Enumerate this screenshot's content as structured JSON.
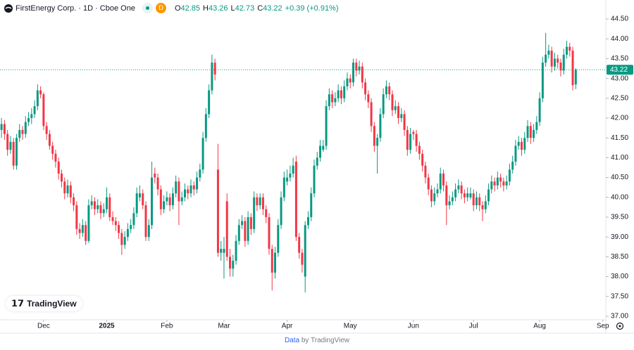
{
  "chart_data": {
    "type": "candlestick",
    "title": "FirstEnergy Corp. · 1D · Cboe One",
    "interval_badge": "D",
    "ohlc_labels": [
      "O",
      "H",
      "L",
      "C"
    ],
    "change": "+0.39 (+0.91%)",
    "up_color": "#089981",
    "down_color": "#f23645",
    "candles": [
      [
        41.7,
        42.0,
        41.5,
        41.85
      ],
      [
        41.85,
        41.95,
        41.45,
        41.6
      ],
      [
        41.6,
        41.7,
        41.05,
        41.2
      ],
      [
        41.2,
        41.55,
        41.1,
        41.4
      ],
      [
        41.4,
        41.5,
        40.7,
        40.8
      ],
      [
        40.8,
        41.6,
        40.7,
        41.5
      ],
      [
        41.5,
        41.85,
        41.4,
        41.7
      ],
      [
        41.7,
        41.8,
        41.45,
        41.6
      ],
      [
        41.6,
        42.05,
        41.5,
        41.9
      ],
      [
        41.9,
        42.15,
        41.8,
        42.0
      ],
      [
        42.0,
        42.25,
        41.85,
        42.1
      ],
      [
        42.1,
        42.45,
        42.0,
        42.3
      ],
      [
        42.3,
        42.85,
        42.2,
        42.7
      ],
      [
        42.7,
        42.8,
        42.5,
        42.6
      ],
      [
        42.6,
        42.65,
        41.7,
        41.8
      ],
      [
        41.8,
        41.9,
        41.45,
        41.6
      ],
      [
        41.6,
        41.7,
        41.2,
        41.3
      ],
      [
        41.3,
        41.4,
        40.95,
        41.1
      ],
      [
        41.1,
        41.2,
        40.75,
        40.9
      ],
      [
        40.9,
        41.0,
        40.45,
        40.6
      ],
      [
        40.6,
        40.7,
        40.25,
        40.4
      ],
      [
        40.4,
        40.5,
        39.95,
        40.1
      ],
      [
        40.1,
        40.45,
        40.0,
        40.3
      ],
      [
        40.3,
        40.4,
        39.85,
        40.0
      ],
      [
        40.0,
        40.1,
        39.65,
        39.8
      ],
      [
        39.8,
        39.9,
        39.05,
        39.2
      ],
      [
        39.2,
        39.35,
        38.95,
        39.1
      ],
      [
        39.1,
        39.45,
        39.0,
        39.3
      ],
      [
        39.3,
        39.4,
        38.8,
        38.9
      ],
      [
        38.9,
        39.95,
        38.85,
        39.8
      ],
      [
        39.8,
        40.05,
        39.7,
        39.9
      ],
      [
        39.9,
        40.0,
        39.55,
        39.7
      ],
      [
        39.7,
        39.95,
        39.6,
        39.8
      ],
      [
        39.8,
        39.9,
        39.45,
        39.6
      ],
      [
        39.6,
        39.85,
        39.5,
        39.7
      ],
      [
        39.7,
        40.25,
        39.6,
        40.0
      ],
      [
        40.0,
        40.1,
        39.4,
        39.5
      ],
      [
        39.5,
        39.65,
        39.3,
        39.4
      ],
      [
        39.4,
        39.5,
        39.15,
        39.3
      ],
      [
        39.3,
        39.4,
        38.95,
        39.1
      ],
      [
        39.1,
        39.2,
        38.55,
        38.8
      ],
      [
        38.8,
        39.15,
        38.7,
        39.0
      ],
      [
        39.0,
        39.35,
        38.9,
        39.2
      ],
      [
        39.2,
        39.45,
        39.1,
        39.3
      ],
      [
        39.3,
        39.75,
        39.2,
        39.6
      ],
      [
        39.6,
        40.25,
        39.5,
        40.1
      ],
      [
        40.0,
        40.3,
        39.9,
        40.1
      ],
      [
        40.1,
        40.2,
        39.7,
        39.8
      ],
      [
        39.8,
        39.9,
        38.9,
        39.0
      ],
      [
        39.0,
        39.45,
        38.9,
        39.3
      ],
      [
        39.3,
        40.9,
        39.2,
        40.5
      ],
      [
        40.6,
        40.75,
        40.35,
        40.5
      ],
      [
        40.5,
        40.6,
        40.05,
        40.2
      ],
      [
        40.2,
        40.3,
        39.55,
        39.7
      ],
      [
        39.7,
        40.05,
        39.6,
        39.9
      ],
      [
        39.9,
        40.15,
        39.8,
        40.0
      ],
      [
        40.0,
        40.1,
        39.65,
        39.8
      ],
      [
        39.8,
        40.25,
        39.7,
        40.1
      ],
      [
        40.1,
        40.55,
        40.0,
        40.4
      ],
      [
        40.4,
        40.5,
        39.3,
        39.9
      ],
      [
        39.9,
        40.15,
        39.8,
        40.0
      ],
      [
        40.0,
        40.35,
        39.9,
        40.2
      ],
      [
        40.2,
        40.3,
        39.95,
        40.1
      ],
      [
        40.1,
        40.45,
        40.0,
        40.3
      ],
      [
        40.3,
        40.4,
        40.05,
        40.2
      ],
      [
        40.2,
        40.65,
        40.1,
        40.5
      ],
      [
        40.5,
        40.85,
        40.4,
        40.7
      ],
      [
        40.7,
        41.65,
        40.6,
        41.5
      ],
      [
        41.5,
        42.25,
        41.4,
        42.1
      ],
      [
        42.1,
        42.85,
        42.0,
        42.7
      ],
      [
        42.7,
        43.6,
        42.6,
        43.4
      ],
      [
        43.4,
        43.5,
        42.95,
        43.1
      ],
      [
        40.7,
        41.35,
        38.5,
        38.6
      ],
      [
        38.6,
        38.9,
        38.4,
        38.7
      ],
      [
        38.6,
        39.0,
        37.95,
        38.7
      ],
      [
        39.9,
        40.1,
        38.4,
        38.5
      ],
      [
        38.5,
        38.7,
        38.0,
        38.2
      ],
      [
        38.2,
        38.55,
        38.0,
        38.4
      ],
      [
        38.4,
        39.05,
        38.3,
        38.9
      ],
      [
        38.9,
        39.45,
        38.8,
        39.3
      ],
      [
        39.3,
        39.55,
        39.2,
        39.4
      ],
      [
        39.4,
        39.5,
        38.75,
        38.9
      ],
      [
        38.9,
        39.65,
        38.8,
        39.5
      ],
      [
        39.5,
        39.6,
        39.05,
        39.2
      ],
      [
        39.2,
        40.15,
        39.1,
        40.0
      ],
      [
        40.0,
        40.1,
        39.65,
        39.8
      ],
      [
        39.8,
        40.1,
        39.7,
        40.0
      ],
      [
        40.0,
        40.1,
        39.55,
        39.7
      ],
      [
        39.7,
        39.8,
        39.35,
        39.5
      ],
      [
        39.5,
        39.6,
        38.55,
        38.7
      ],
      [
        38.7,
        38.8,
        37.65,
        38.1
      ],
      [
        38.1,
        38.75,
        37.95,
        38.6
      ],
      [
        38.6,
        39.45,
        38.5,
        39.3
      ],
      [
        39.3,
        40.15,
        39.2,
        40.0
      ],
      [
        40.0,
        40.65,
        39.9,
        40.5
      ],
      [
        40.4,
        40.7,
        40.3,
        40.5
      ],
      [
        40.5,
        40.8,
        40.4,
        40.6
      ],
      [
        40.6,
        41.0,
        40.5,
        40.8
      ],
      [
        40.9,
        41.05,
        38.9,
        39.0
      ],
      [
        39.0,
        39.1,
        38.45,
        38.6
      ],
      [
        38.6,
        38.7,
        38.1,
        38.3
      ],
      [
        38.0,
        39.4,
        37.6,
        39.3
      ],
      [
        39.3,
        39.65,
        39.2,
        39.5
      ],
      [
        39.5,
        40.25,
        39.4,
        40.1
      ],
      [
        40.1,
        40.95,
        40.0,
        40.8
      ],
      [
        40.8,
        41.15,
        40.7,
        41.0
      ],
      [
        41.0,
        41.45,
        40.9,
        41.3
      ],
      [
        41.2,
        41.45,
        41.15,
        41.3
      ],
      [
        41.3,
        42.45,
        41.2,
        42.3
      ],
      [
        42.3,
        42.75,
        42.2,
        42.6
      ],
      [
        42.6,
        42.7,
        42.25,
        42.4
      ],
      [
        42.4,
        42.65,
        42.3,
        42.5
      ],
      [
        42.5,
        42.85,
        42.4,
        42.7
      ],
      [
        42.7,
        42.8,
        42.35,
        42.5
      ],
      [
        42.5,
        42.95,
        42.4,
        42.8
      ],
      [
        42.8,
        43.15,
        42.7,
        43.0
      ],
      [
        43.0,
        43.1,
        42.75,
        42.9
      ],
      [
        42.9,
        43.5,
        42.8,
        43.4
      ],
      [
        43.4,
        43.5,
        43.05,
        43.2
      ],
      [
        43.2,
        43.45,
        43.1,
        43.3
      ],
      [
        43.3,
        43.4,
        42.75,
        42.9
      ],
      [
        42.9,
        43.0,
        42.45,
        42.6
      ],
      [
        42.6,
        42.7,
        42.25,
        42.4
      ],
      [
        42.4,
        42.5,
        41.65,
        41.8
      ],
      [
        41.8,
        41.9,
        41.15,
        41.3
      ],
      [
        41.3,
        41.6,
        40.6,
        41.5
      ],
      [
        41.5,
        42.25,
        41.4,
        42.1
      ],
      [
        42.1,
        42.75,
        42.0,
        42.6
      ],
      [
        42.6,
        42.95,
        42.5,
        42.8
      ],
      [
        42.8,
        42.9,
        42.45,
        42.6
      ],
      [
        42.6,
        42.7,
        42.05,
        42.2
      ],
      [
        42.2,
        42.45,
        42.1,
        42.3
      ],
      [
        42.3,
        42.4,
        41.85,
        42.0
      ],
      [
        42.0,
        42.25,
        41.9,
        42.1
      ],
      [
        42.1,
        42.2,
        41.55,
        41.7
      ],
      [
        41.7,
        41.8,
        41.05,
        41.2
      ],
      [
        41.2,
        41.75,
        41.1,
        41.6
      ],
      [
        41.65,
        41.7,
        41.45,
        41.6
      ],
      [
        41.6,
        41.7,
        41.15,
        41.3
      ],
      [
        41.3,
        41.4,
        40.95,
        41.1
      ],
      [
        41.1,
        41.2,
        40.65,
        40.8
      ],
      [
        40.8,
        40.9,
        40.35,
        40.5
      ],
      [
        40.5,
        40.6,
        40.05,
        40.2
      ],
      [
        40.2,
        40.3,
        39.75,
        39.9
      ],
      [
        39.9,
        40.25,
        39.8,
        40.1
      ],
      [
        40.1,
        40.35,
        40.0,
        40.2
      ],
      [
        40.2,
        40.75,
        40.1,
        40.6
      ],
      [
        40.6,
        40.7,
        40.15,
        40.3
      ],
      [
        40.3,
        40.4,
        39.3,
        39.8
      ],
      [
        39.8,
        40.05,
        39.7,
        39.9
      ],
      [
        39.9,
        40.15,
        39.8,
        40.0
      ],
      [
        40.0,
        40.35,
        39.9,
        40.2
      ],
      [
        40.2,
        40.45,
        40.1,
        40.3
      ],
      [
        40.3,
        40.4,
        39.95,
        40.1
      ],
      [
        40.1,
        40.2,
        39.85,
        40.0
      ],
      [
        40.0,
        40.25,
        39.9,
        40.1
      ],
      [
        40.0,
        40.25,
        39.95,
        40.1
      ],
      [
        40.1,
        40.2,
        39.65,
        39.8
      ],
      [
        39.8,
        40.15,
        39.7,
        40.0
      ],
      [
        40.0,
        40.1,
        39.65,
        39.8
      ],
      [
        39.8,
        39.9,
        39.4,
        39.7
      ],
      [
        39.7,
        40.05,
        39.6,
        39.9
      ],
      [
        39.9,
        40.35,
        39.8,
        40.2
      ],
      [
        40.2,
        40.55,
        40.1,
        40.4
      ],
      [
        40.4,
        40.5,
        40.15,
        40.3
      ],
      [
        40.3,
        40.65,
        40.2,
        40.5
      ],
      [
        40.5,
        40.6,
        40.25,
        40.4
      ],
      [
        40.4,
        40.5,
        40.15,
        40.3
      ],
      [
        40.3,
        40.55,
        40.2,
        40.4
      ],
      [
        40.4,
        40.85,
        40.3,
        40.7
      ],
      [
        40.7,
        41.05,
        40.6,
        40.9
      ],
      [
        40.9,
        41.45,
        40.8,
        41.3
      ],
      [
        41.3,
        41.55,
        41.2,
        41.4
      ],
      [
        41.4,
        41.5,
        41.05,
        41.2
      ],
      [
        41.2,
        41.65,
        41.1,
        41.5
      ],
      [
        41.5,
        41.95,
        41.4,
        41.8
      ],
      [
        41.8,
        41.9,
        41.35,
        41.5
      ],
      [
        41.5,
        41.85,
        41.4,
        41.7
      ],
      [
        41.7,
        42.05,
        41.6,
        41.9
      ],
      [
        41.9,
        42.65,
        41.8,
        42.5
      ],
      [
        42.5,
        43.55,
        42.4,
        43.4
      ],
      [
        43.4,
        44.15,
        43.3,
        43.6
      ],
      [
        43.6,
        43.85,
        43.5,
        43.7
      ],
      [
        43.7,
        43.8,
        43.15,
        43.3
      ],
      [
        43.3,
        43.65,
        43.2,
        43.5
      ],
      [
        43.5,
        43.6,
        43.25,
        43.4
      ],
      [
        43.4,
        43.5,
        43.05,
        43.2
      ],
      [
        43.2,
        43.75,
        43.1,
        43.6
      ],
      [
        43.6,
        43.95,
        43.5,
        43.8
      ],
      [
        43.8,
        43.9,
        43.55,
        43.7
      ],
      [
        43.7,
        43.8,
        42.7,
        42.83
      ],
      [
        42.85,
        43.26,
        42.73,
        43.22
      ]
    ],
    "xlim": [
      -0.5,
      201
    ],
    "xticks": [
      {
        "value": 14,
        "label": "Dec"
      },
      {
        "value": 35,
        "label": "2025"
      },
      {
        "value": 55,
        "label": "Feb"
      },
      {
        "value": 74,
        "label": "Mar"
      },
      {
        "value": 95,
        "label": "Apr"
      },
      {
        "value": 116,
        "label": "May"
      },
      {
        "value": 137,
        "label": "Jun"
      },
      {
        "value": 157,
        "label": "Jul"
      },
      {
        "value": 179,
        "label": "Aug"
      },
      {
        "value": 200,
        "label": "Sep"
      }
    ],
    "ylim": [
      36.91,
      44.98
    ],
    "yticks": [
      {
        "value": 37,
        "label": "37.00"
      },
      {
        "value": 37.5,
        "label": "37.50"
      },
      {
        "value": 38,
        "label": "38.00"
      },
      {
        "value": 38.5,
        "label": "38.50"
      },
      {
        "value": 39,
        "label": "39.00"
      },
      {
        "value": 39.5,
        "label": "39.50"
      },
      {
        "value": 40,
        "label": "40.00"
      },
      {
        "value": 40.5,
        "label": "40.50"
      },
      {
        "value": 41,
        "label": "41.00"
      },
      {
        "value": 41.5,
        "label": "41.50"
      },
      {
        "value": 42,
        "label": "42.00"
      },
      {
        "value": 42.5,
        "label": "42.50"
      },
      {
        "value": 43,
        "label": "43.00"
      },
      {
        "value": 43.5,
        "label": "43.50"
      },
      {
        "value": 44,
        "label": "44.00"
      },
      {
        "value": 44.5,
        "label": "44.50"
      }
    ],
    "grid": false,
    "last_price_line": true
  },
  "branding": {
    "logo": "TradingView",
    "footer_link": "Data",
    "footer_text": "by TradingView"
  }
}
